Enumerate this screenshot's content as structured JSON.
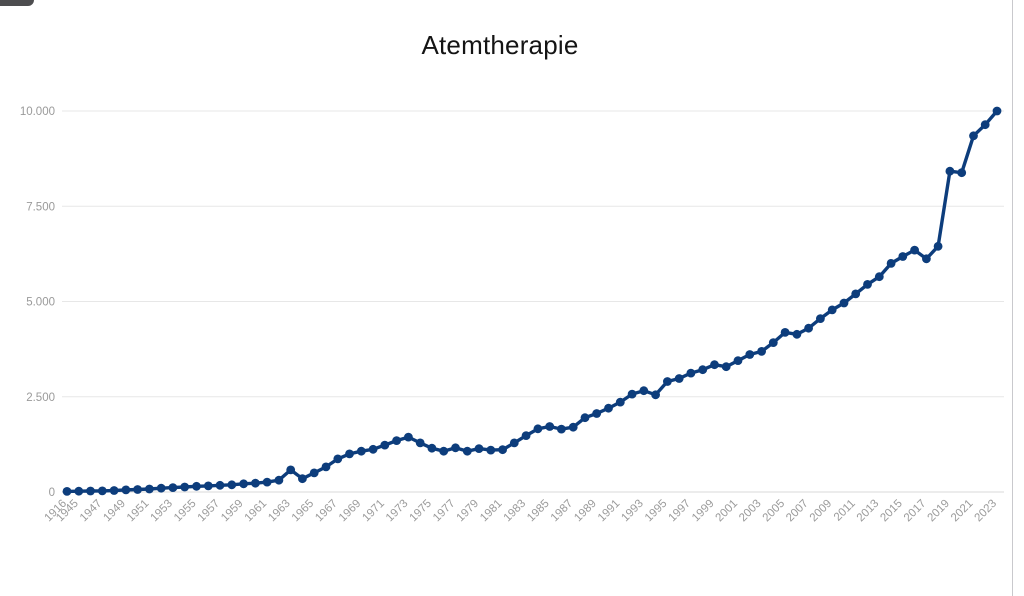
{
  "chart": {
    "title": "Atemtherapie",
    "line_color": "#0d3d7c",
    "grid_color": "#e7e7e7",
    "axis_line_color": "#d9d9d9",
    "tick_label_color": "#9a9a9a",
    "y_ticks": [
      {
        "value": 0,
        "label": "0"
      },
      {
        "value": 2500,
        "label": "2.500"
      },
      {
        "value": 5000,
        "label": "5.000"
      },
      {
        "value": 7500,
        "label": "7.500"
      },
      {
        "value": 10000,
        "label": "10.000"
      }
    ]
  },
  "chart_data": {
    "type": "line",
    "title": "Atemtherapie",
    "ylim": [
      0,
      10000
    ],
    "grid": "horizontal",
    "legend": "none",
    "x_tick_labeling": "first category (1916), then every second year starting at 1945",
    "categories": [
      "1916",
      "1945",
      "1946",
      "1947",
      "1948",
      "1949",
      "1950",
      "1951",
      "1952",
      "1953",
      "1954",
      "1955",
      "1956",
      "1957",
      "1958",
      "1959",
      "1960",
      "1961",
      "1962",
      "1963",
      "1964",
      "1965",
      "1966",
      "1967",
      "1968",
      "1969",
      "1970",
      "1971",
      "1972",
      "1973",
      "1974",
      "1975",
      "1976",
      "1977",
      "1978",
      "1979",
      "1980",
      "1981",
      "1982",
      "1983",
      "1984",
      "1985",
      "1986",
      "1987",
      "1988",
      "1989",
      "1990",
      "1991",
      "1992",
      "1993",
      "1994",
      "1995",
      "1996",
      "1997",
      "1998",
      "1999",
      "2000",
      "2001",
      "2002",
      "2003",
      "2004",
      "2005",
      "2006",
      "2007",
      "2008",
      "2009",
      "2010",
      "2011",
      "2012",
      "2013",
      "2014",
      "2015",
      "2016",
      "2017",
      "2018",
      "2019",
      "2020",
      "2021",
      "2022",
      "2023"
    ],
    "values": [
      15,
      20,
      25,
      30,
      40,
      55,
      65,
      80,
      100,
      115,
      130,
      150,
      160,
      175,
      190,
      215,
      230,
      260,
      310,
      580,
      350,
      500,
      660,
      870,
      1000,
      1070,
      1120,
      1230,
      1350,
      1440,
      1290,
      1150,
      1070,
      1160,
      1070,
      1140,
      1100,
      1110,
      1290,
      1480,
      1660,
      1720,
      1650,
      1700,
      1950,
      2060,
      2200,
      2360,
      2570,
      2660,
      2550,
      2900,
      2980,
      3120,
      3210,
      3340,
      3290,
      3450,
      3610,
      3690,
      3920,
      4190,
      4140,
      4300,
      4550,
      4780,
      4960,
      5200,
      5450,
      5650,
      6000,
      6180,
      6350,
      6120,
      6450,
      8420,
      8380,
      9350,
      9640,
      10000
    ]
  }
}
